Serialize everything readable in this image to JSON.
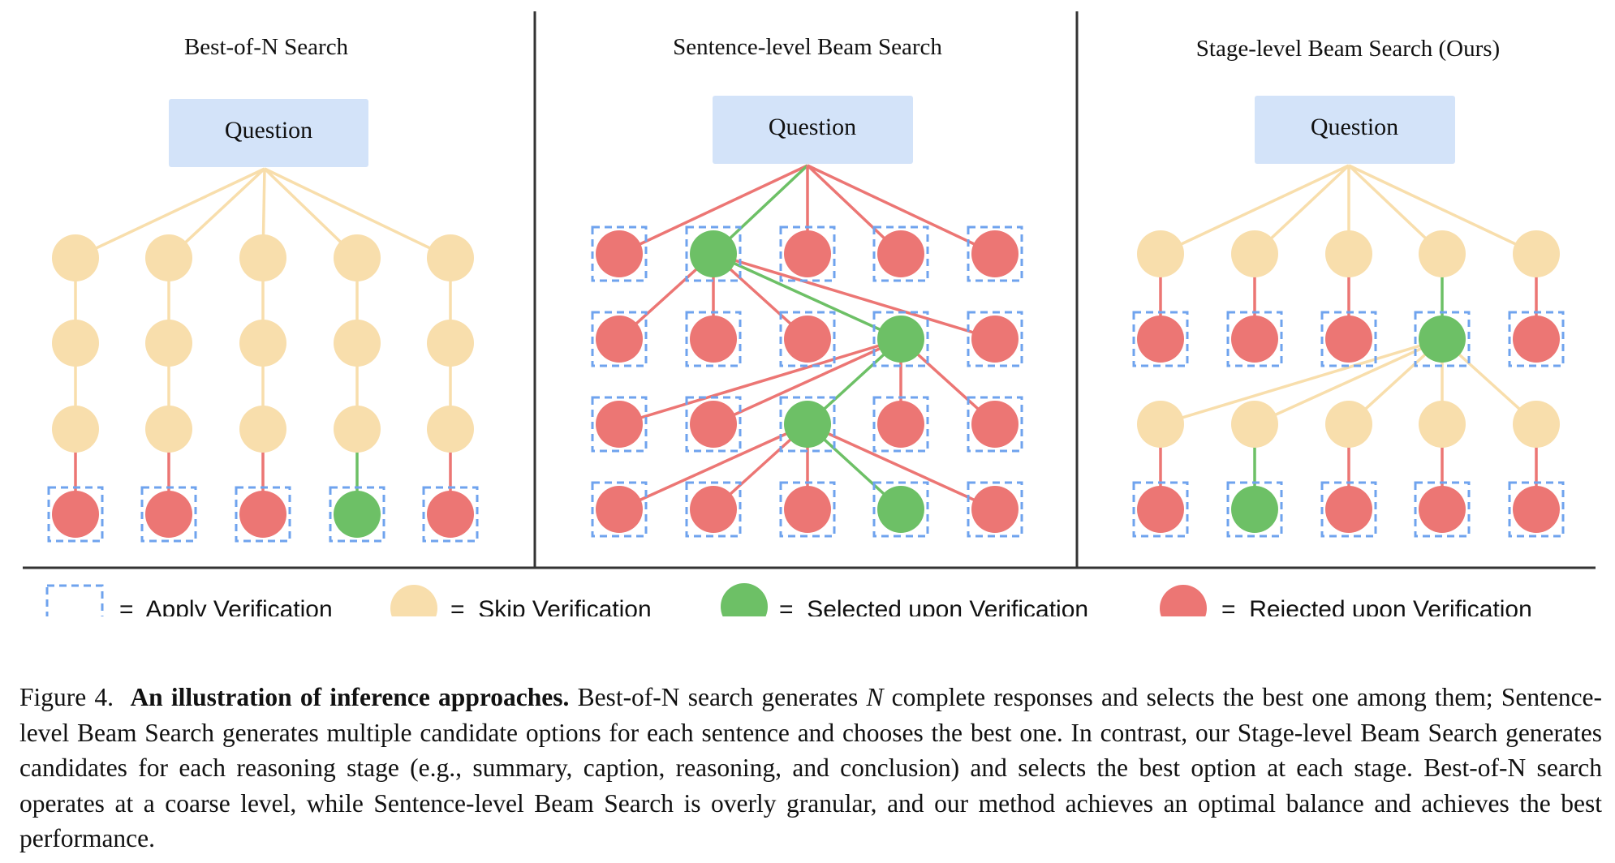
{
  "colors": {
    "skip": "#F8DEAC",
    "selected": "#6DC066",
    "rejected": "#EC7674",
    "question_box": "#D3E3F9",
    "dashed": "#6FA3EE",
    "divider": "#333333"
  },
  "panels": [
    {
      "title": "Best-of-N Search",
      "question": "Question"
    },
    {
      "title": "Sentence-level Beam Search",
      "question": "Question"
    },
    {
      "title": "Stage-level Beam Search (Ours)",
      "question": "Question"
    }
  ],
  "legend": {
    "apply": "=  Apply Verification",
    "skip": "=  Skip Verification",
    "selected": "=  Selected upon Verification",
    "rejected": "=  Rejected upon Verification"
  },
  "caption": {
    "label": "Figure 4.",
    "bold": "An illustration of inference approaches.",
    "part1": "Best-of-N search generates",
    "var_n": "N",
    "part2": "complete responses and selects the best one among them; Sentence-level Beam Search generates multiple candidate options for each sentence and chooses the best one. In contrast, our Stage-level Beam Search generates candidates for each reasoning stage (e.g., summary, caption, reasoning, and conclusion) and selects the best option at each stage. Best-of-N search operates at a coarse level, while Sentence-level Beam Search is overly granular, and our method achieves an optimal balance and achieves the best performance."
  }
}
